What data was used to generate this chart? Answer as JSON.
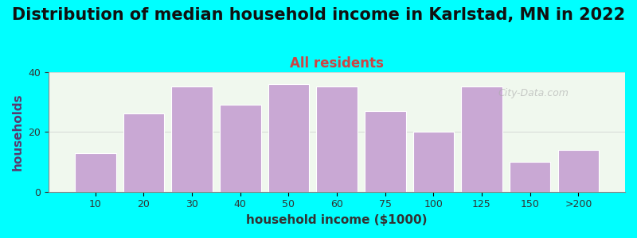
{
  "title": "Distribution of median household income in Karlstad, MN in 2022",
  "subtitle": "All residents",
  "xlabel": "household income ($1000)",
  "ylabel": "households",
  "background_color": "#00FFFF",
  "plot_bg_color": "#f0f8ee",
  "bar_color": "#c9a8d4",
  "bar_edge_color": "#ffffff",
  "categories": [
    "10",
    "20",
    "30",
    "40",
    "50",
    "60",
    "75",
    "100",
    "125",
    "150",
    ">200"
  ],
  "values": [
    13,
    26,
    35,
    29,
    36,
    35,
    27,
    20,
    35,
    10,
    14
  ],
  "ylim": [
    0,
    40
  ],
  "yticks": [
    0,
    20,
    40
  ],
  "title_fontsize": 15,
  "subtitle_fontsize": 12,
  "axis_label_fontsize": 11,
  "watermark": "City-Data.com"
}
